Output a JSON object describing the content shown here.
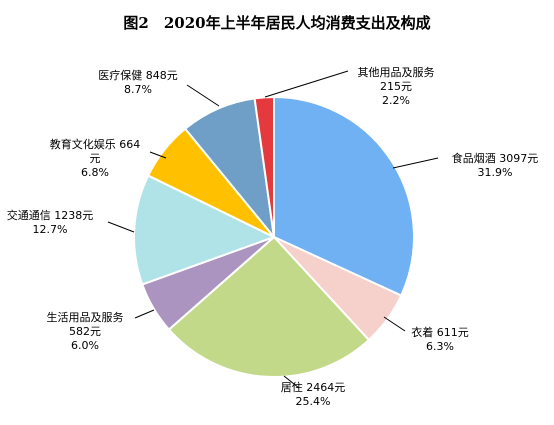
{
  "chart_data": {
    "type": "pie",
    "title": "图2　2020年上半年居民人均消费支出及构成",
    "slices": [
      {
        "label_lines": [
          "食品烟酒 3097元",
          "31.9%"
        ],
        "value": 3097,
        "percent": 31.9,
        "color": "#6fb1f3"
      },
      {
        "label_lines": [
          "衣着 611元",
          "6.3%"
        ],
        "value": 611,
        "percent": 6.3,
        "color": "#f6d0ca"
      },
      {
        "label_lines": [
          "居住 2464元",
          "25.4%"
        ],
        "value": 2464,
        "percent": 25.4,
        "color": "#c3d98a"
      },
      {
        "label_lines": [
          "生活用品及服务",
          "582元",
          "6.0%"
        ],
        "value": 582,
        "percent": 6.0,
        "color": "#ab94bf"
      },
      {
        "label_lines": [
          "交通通信 1238元",
          "12.7%"
        ],
        "value": 1238,
        "percent": 12.7,
        "color": "#b0e3e8"
      },
      {
        "label_lines": [
          "教育文化娱乐 664",
          "元",
          "6.8%"
        ],
        "value": 664,
        "percent": 6.8,
        "color": "#ffc000"
      },
      {
        "label_lines": [
          "医疗保健 848元",
          "8.7%"
        ],
        "value": 848,
        "percent": 8.7,
        "color": "#6f9fc7"
      },
      {
        "label_lines": [
          "其他用品及服务",
          "215元",
          "2.2%"
        ],
        "value": 215,
        "percent": 2.2,
        "color": "#e4393d"
      }
    ]
  }
}
